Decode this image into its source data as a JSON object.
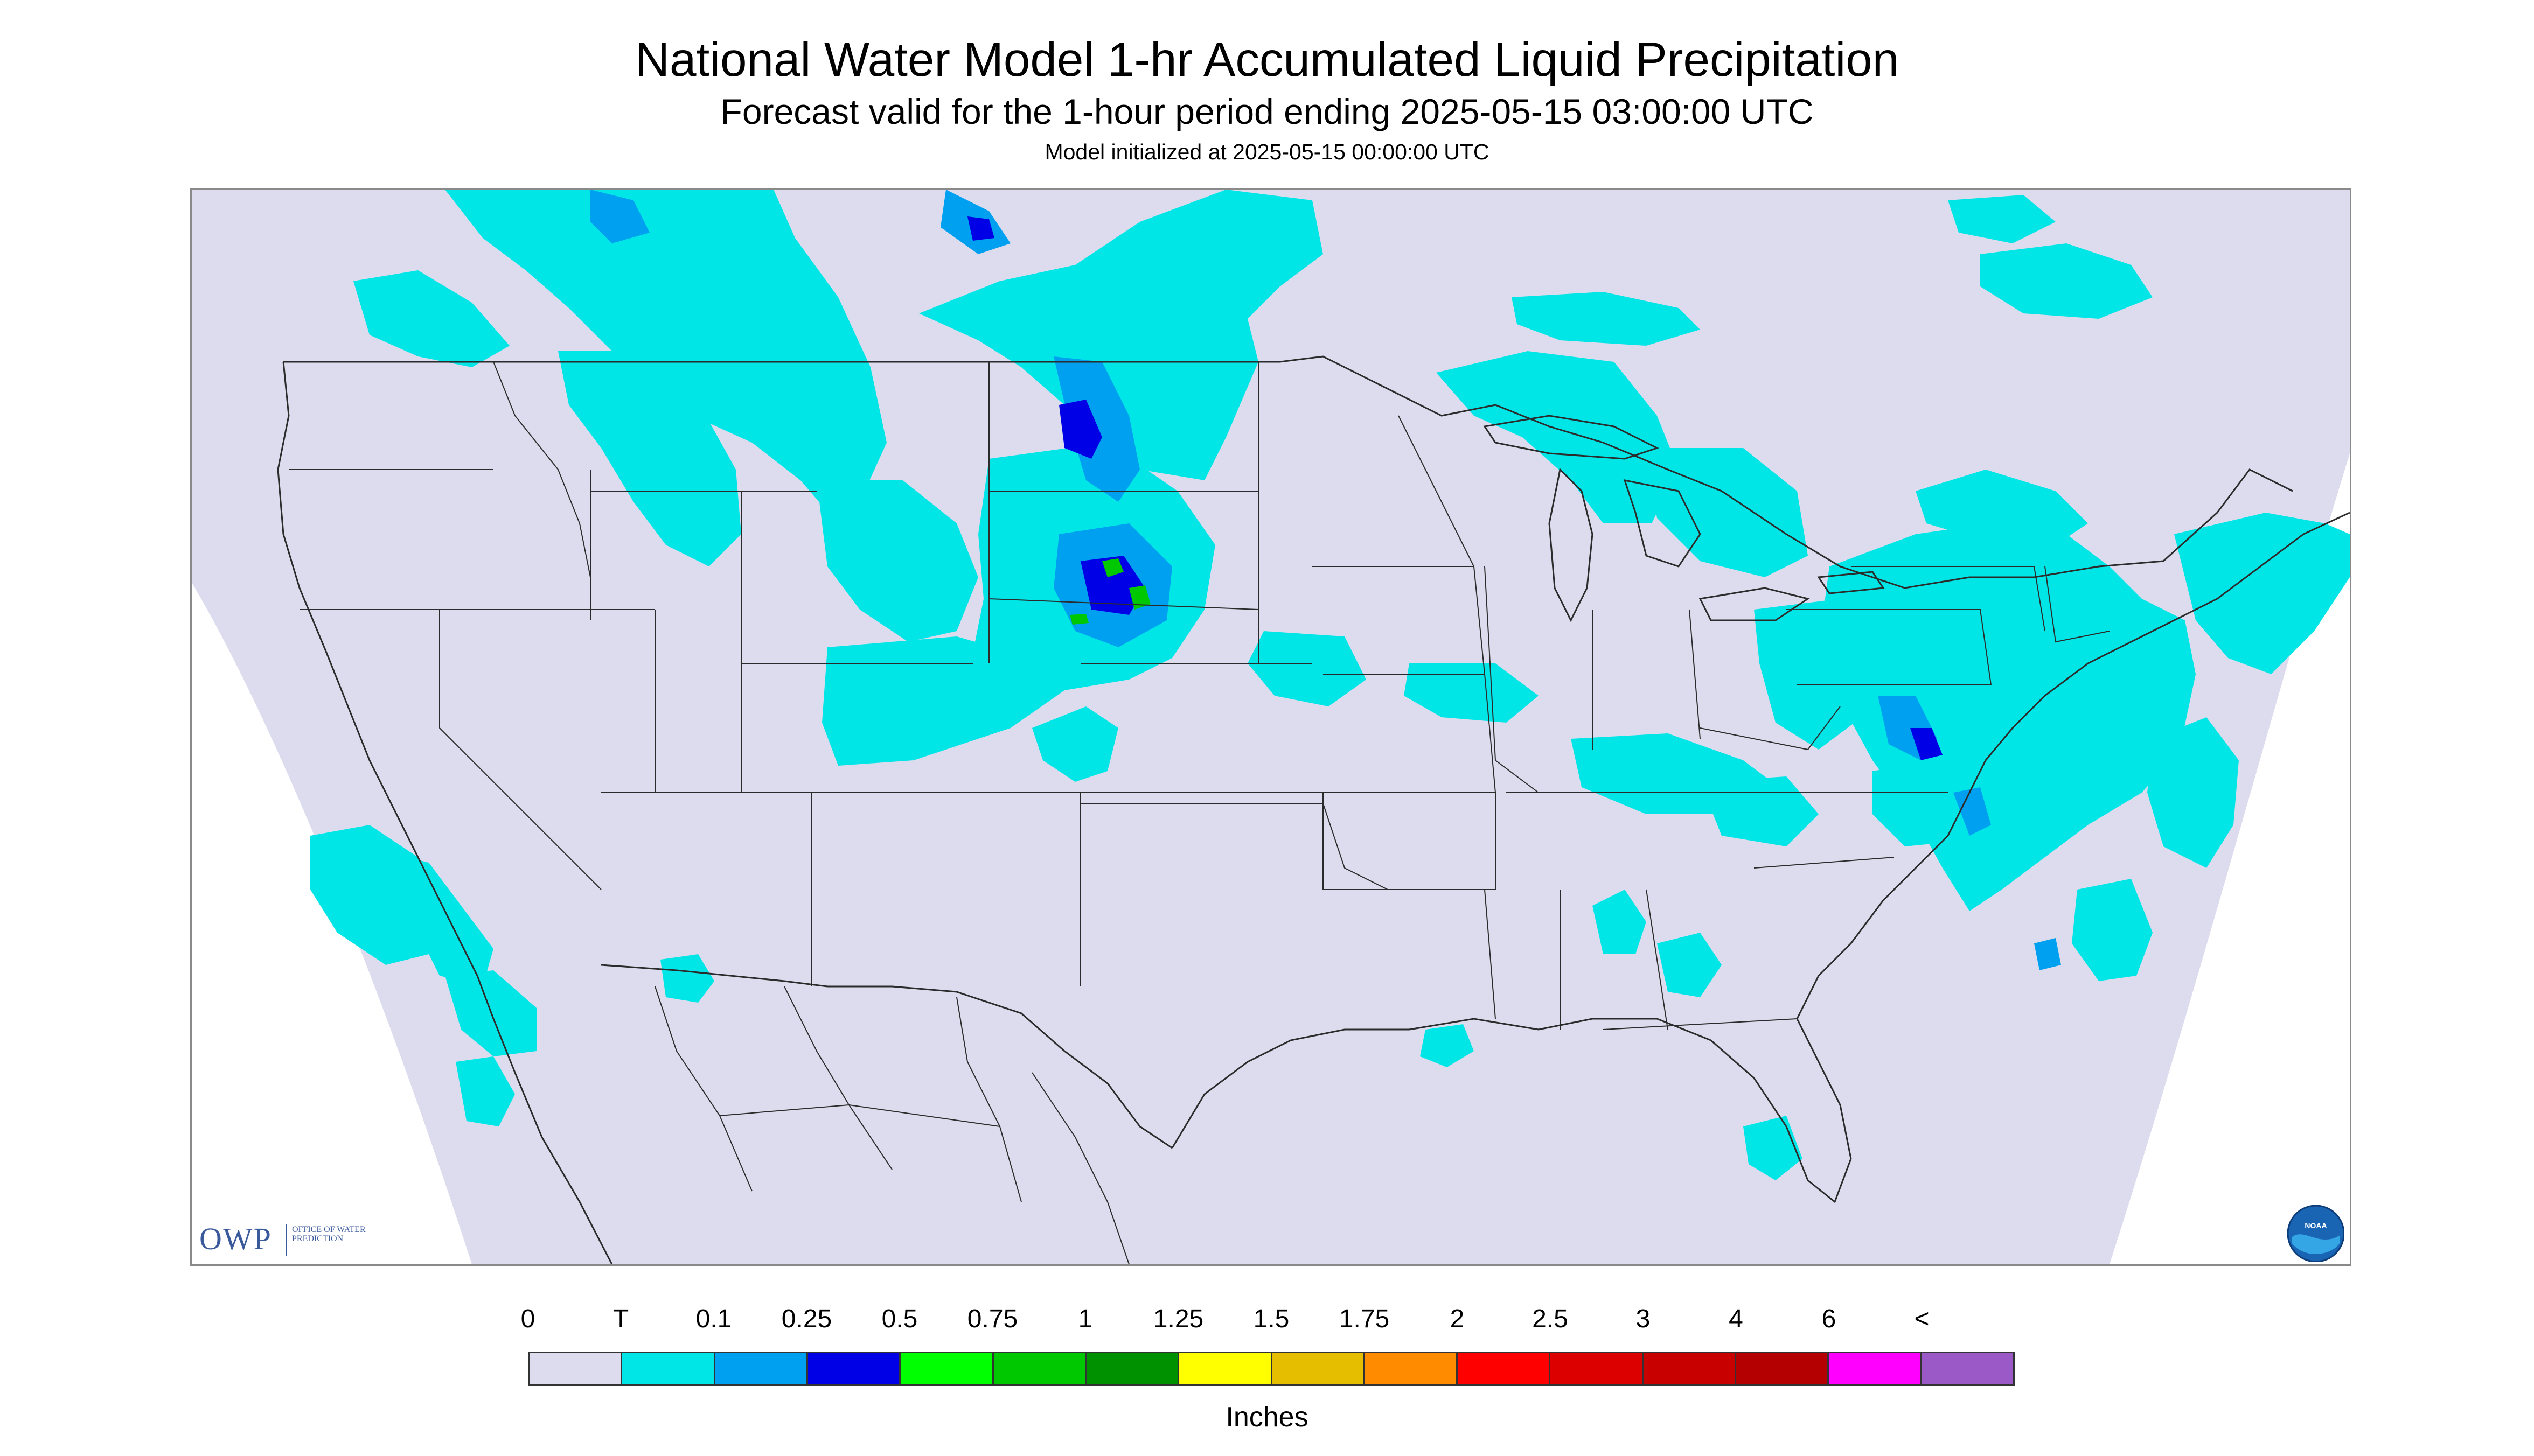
{
  "title": "National Water Model 1-hr Accumulated Liquid Precipitation",
  "subtitle": "Forecast valid for the 1-hour period ending 2025-05-15 03:00:00 UTC",
  "init_line": "Model initialized at 2025-05-15 00:00:00 UTC",
  "logos": {
    "owp_letters": "OWP",
    "owp_sub": "Office of Water Prediction",
    "noaa": "NOAA"
  },
  "colors": {
    "map_background": "#dcdcee",
    "outside_domain": "#ffffff",
    "boundaries": "#2b2b2b"
  },
  "legend": {
    "tick_labels": [
      "0",
      "T",
      "0.1",
      "0.25",
      "0.5",
      "0.75",
      "1",
      "1.25",
      "1.5",
      "1.75",
      "2",
      "2.5",
      "3",
      "4",
      "6",
      "<"
    ],
    "colors": [
      "#dcdcee",
      "#00e6e6",
      "#00a0f0",
      "#0000e6",
      "#00ff00",
      "#00c800",
      "#009100",
      "#ffff00",
      "#e6be00",
      "#ff8c00",
      "#ff0000",
      "#dc0000",
      "#c80000",
      "#b40000",
      "#ff00ff",
      "#9b59c8"
    ],
    "units": "Inches"
  }
}
